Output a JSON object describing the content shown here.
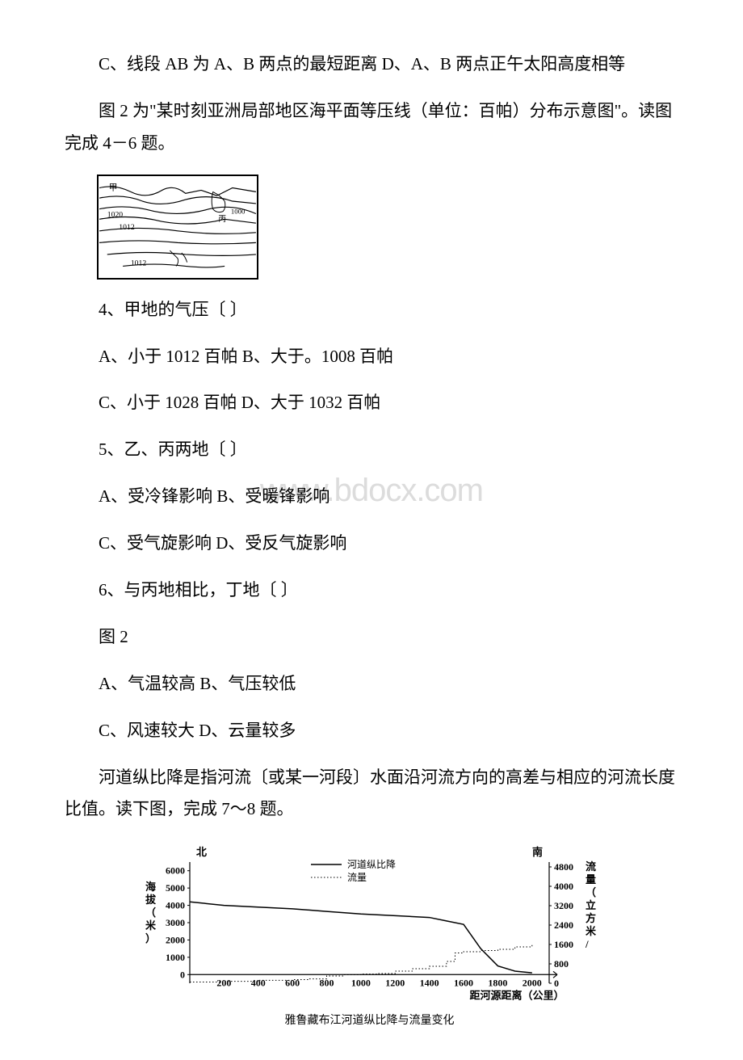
{
  "text": {
    "p1": "C、线段 AB 为 A、B 两点的最短距离 D、A、B 两点正午太阳高度相等",
    "p2": "图 2 为\"某时刻亚洲局部地区海平面等压线（单位：百帕）分布示意图\"。读图完成 4－6 题。",
    "q4": "4、甲地的气压〔  〕",
    "q4a": "A、小于 1012 百帕 B、大于。1008 百帕",
    "q4b": "C、小于 1028 百帕 D、大于 1032 百帕",
    "q5": "5、乙、丙两地〔  〕",
    "q5a": "A、受冷锋影响 B、受暖锋影响",
    "q5b": "C、受气旋影响 D、受反气旋影响",
    "q6": "6、与丙地相比，丁地〔  〕",
    "fig2label": "图 2",
    "q6a": "A、气温较高 B、气压较低",
    "q6b": "C、风速较大 D、云量较多",
    "p3": "河道纵比降是指河流〔或某一河段〕水面沿河流方向的高差与相应的河流长度比值。读下图，完成 7～8 题。"
  },
  "watermark": "www.bdocx.com",
  "figure1": {
    "isobar_labels": [
      "1020",
      "1012",
      "1012"
    ],
    "location_labels": [
      "甲",
      "丙"
    ],
    "line_color": "#000000",
    "line_width": 1.2
  },
  "figure2": {
    "title": "雅鲁藏布江河道纵比降与流量变化",
    "left_axis_label": "海拔（米）",
    "right_axis_label": "流量（立方米/",
    "x_axis_label": "距河源距离（公里）",
    "north_label": "北",
    "south_label": "南",
    "legend": [
      "河道纵比降",
      "流量"
    ],
    "left_y_ticks": [
      0,
      1000,
      2000,
      3000,
      4000,
      5000,
      6000
    ],
    "right_y_ticks": [
      0,
      800,
      1600,
      2400,
      3200,
      4000,
      4800
    ],
    "x_ticks": [
      200,
      400,
      600,
      800,
      1000,
      1200,
      1400,
      1600,
      1800,
      2000
    ],
    "elevation_series": {
      "x": [
        0,
        200,
        400,
        600,
        800,
        1000,
        1200,
        1400,
        1500,
        1600,
        1700,
        1800,
        1900,
        2000
      ],
      "y": [
        4200,
        4000,
        3900,
        3800,
        3650,
        3500,
        3400,
        3300,
        3100,
        2900,
        1500,
        500,
        200,
        100
      ]
    },
    "flow_series": {
      "x": [
        0,
        200,
        400,
        600,
        700,
        800,
        900,
        1000,
        1100,
        1200,
        1300,
        1400,
        1500,
        1550,
        1600,
        1700,
        1800,
        1900,
        2000
      ],
      "y": [
        50,
        80,
        120,
        150,
        180,
        300,
        350,
        380,
        400,
        500,
        600,
        700,
        900,
        1250,
        1300,
        1350,
        1400,
        1500,
        1600
      ]
    },
    "colors": {
      "line": "#000000",
      "background": "#ffffff",
      "axis": "#000000"
    },
    "line_width": 1.5,
    "dot_line_width": 1,
    "x_range": [
      0,
      2100
    ],
    "left_y_range": [
      -500,
      6500
    ],
    "right_y_range": [
      0,
      5000
    ]
  }
}
